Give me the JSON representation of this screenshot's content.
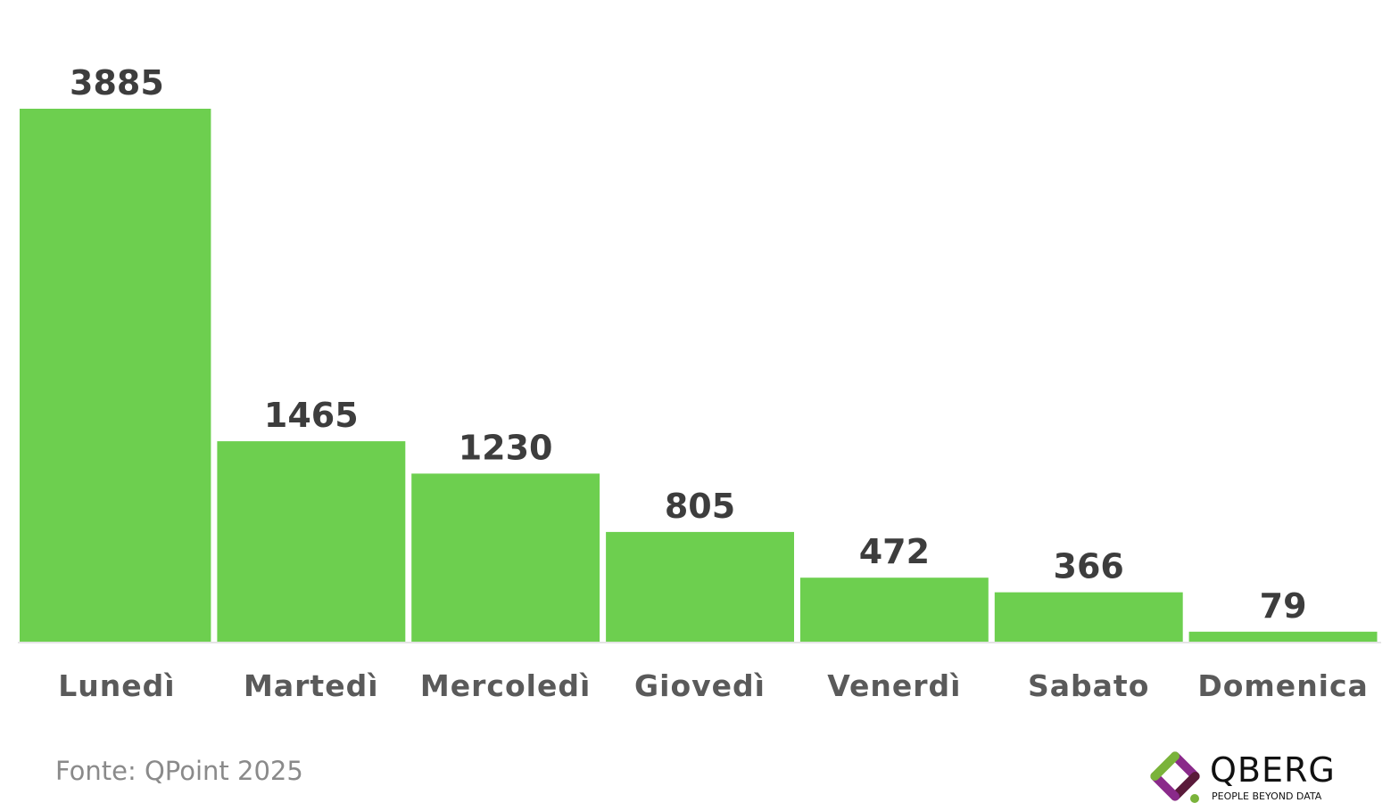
{
  "chart_data": {
    "type": "bar",
    "categories": [
      "Lunedì",
      "Martedì",
      "Mercoledì",
      "Giovedì",
      "Venerdì",
      "Sabato",
      "Domenica"
    ],
    "values": [
      3885,
      1465,
      1230,
      805,
      472,
      366,
      79
    ],
    "title": "",
    "xlabel": "",
    "ylabel": "",
    "ylim": [
      0,
      3885
    ],
    "grid": false,
    "legend": "none",
    "data_labels": true,
    "bar_color": "#6dcf4f",
    "label_color": "#3d3d3d"
  },
  "source": {
    "text": "Fonte: QPoint 2025"
  },
  "logo": {
    "name": "QBERG",
    "tagline": "PEOPLE BEYOND DATA",
    "colors": [
      "#8a2a8a",
      "#7ab33a",
      "#5a1a3a"
    ]
  }
}
